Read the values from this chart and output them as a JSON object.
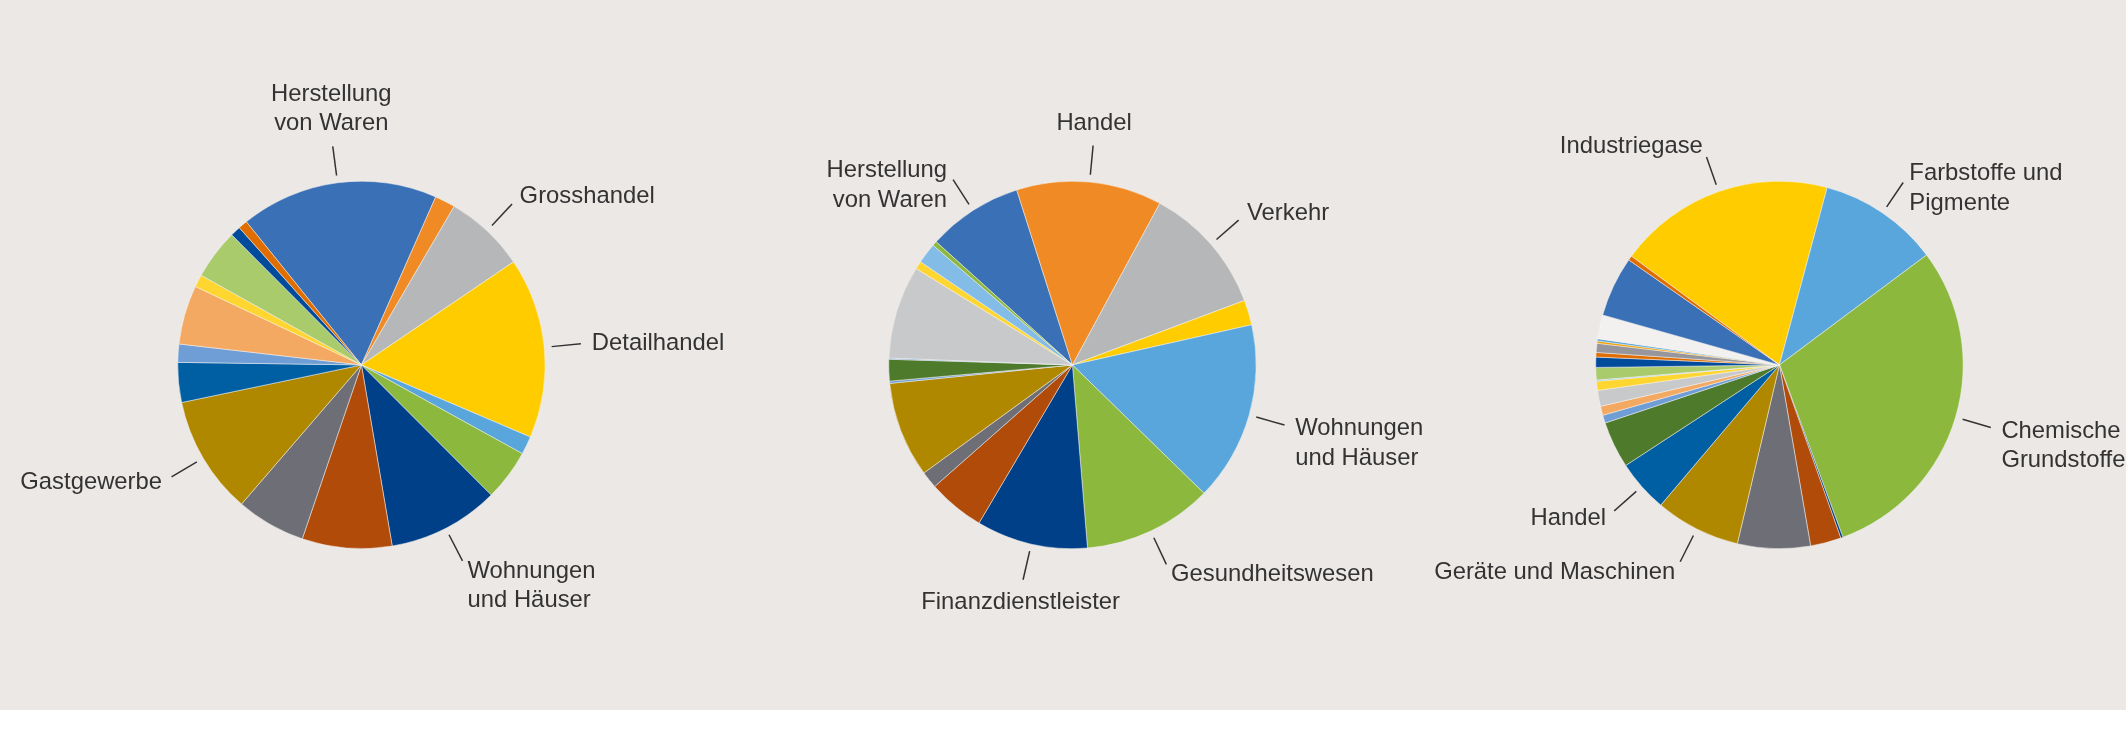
{
  "chart_data": [
    {
      "type": "pie",
      "categories": [
        "Herstellung\nvon Waren",
        null,
        "Grosshandel",
        "Detailhandel",
        null,
        null,
        "Wohnungen\nund Häuser",
        null,
        null,
        "Gastgewerbe",
        null,
        null,
        null,
        null,
        null,
        null,
        null
      ],
      "values": [
        17.4,
        1.8,
        7.1,
        15.9,
        1.6,
        4.5,
        9.8,
        7.9,
        6.1,
        10.4,
        3.5,
        1.6,
        5.2,
        1.1,
        4.4,
        0.9,
        0.8
      ],
      "colors": [
        "#3a70b5",
        "#f08a24",
        "#b6b7b9",
        "#ffcc00",
        "#58a6db",
        "#8cb83e",
        "#004088",
        "#b14b09",
        "#6e6e76",
        "#b08800",
        "#005ea2",
        "#6f9dd6",
        "#f4a962",
        "#ffd530",
        "#a9cb6c",
        "#004b9b",
        "#e06d00"
      ]
    },
    {
      "type": "pie",
      "categories": [
        "Herstellung\nvon Waren",
        "Handel",
        "Verkehr",
        null,
        "Wohnungen\nund Häuser",
        "Gesundheitswesen",
        "Finanzdienstleister",
        null,
        null,
        null,
        null,
        null,
        null,
        null,
        null,
        null,
        null
      ],
      "values": [
        8.4,
        12.8,
        11.4,
        2.2,
        15.8,
        11.4,
        9.8,
        5.0,
        1.5,
        8.4,
        0.2,
        1.9,
        0.1,
        8.2,
        0.7,
        1.8,
        0.4
      ],
      "colors": [
        "#3a70b5",
        "#f08a24",
        "#b6b7b9",
        "#ffcc00",
        "#58a6db",
        "#8cb83e",
        "#004088",
        "#b14b09",
        "#6e6e76",
        "#b08800",
        "#6f9dd6",
        "#4e7a2c",
        "#6f9dd6",
        "#c8c9cb",
        "#ffd530",
        "#83bce6",
        "#8cb83e"
      ]
    },
    {
      "type": "pie",
      "categories": [
        "Industriegase",
        "Farbstoffe und\nPigmente",
        "Chemische\nGrundstoffe",
        null,
        null,
        null,
        "Geräte und Maschinen",
        "Handel",
        null,
        null,
        null,
        null,
        null,
        null,
        null,
        null,
        null,
        null,
        null,
        null,
        null,
        null,
        null
      ],
      "values": [
        19.1,
        10.6,
        29.6,
        0.2,
        2.7,
        6.4,
        7.5,
        4.6,
        4.1,
        0.7,
        0.8,
        1.4,
        0.8,
        0.1,
        1.1,
        0.9,
        0.4,
        0.8,
        0.2,
        0.2,
        2.1,
        5.3,
        0.4
      ],
      "colors": [
        "#ffcc00",
        "#58a6db",
        "#8cb83e",
        "#004088",
        "#b14b09",
        "#6e6e76",
        "#b08800",
        "#005ea2",
        "#4e7a2c",
        "#6f9dd6",
        "#f4a962",
        "#c8c9cb",
        "#ffd530",
        "#83bce6",
        "#a9cb6c",
        "#004b9b",
        "#e06d00",
        "#96969c",
        "#f0a000",
        "#58a6db",
        "#f3f1ef",
        "#3a70b5",
        "#e06d00"
      ]
    }
  ]
}
